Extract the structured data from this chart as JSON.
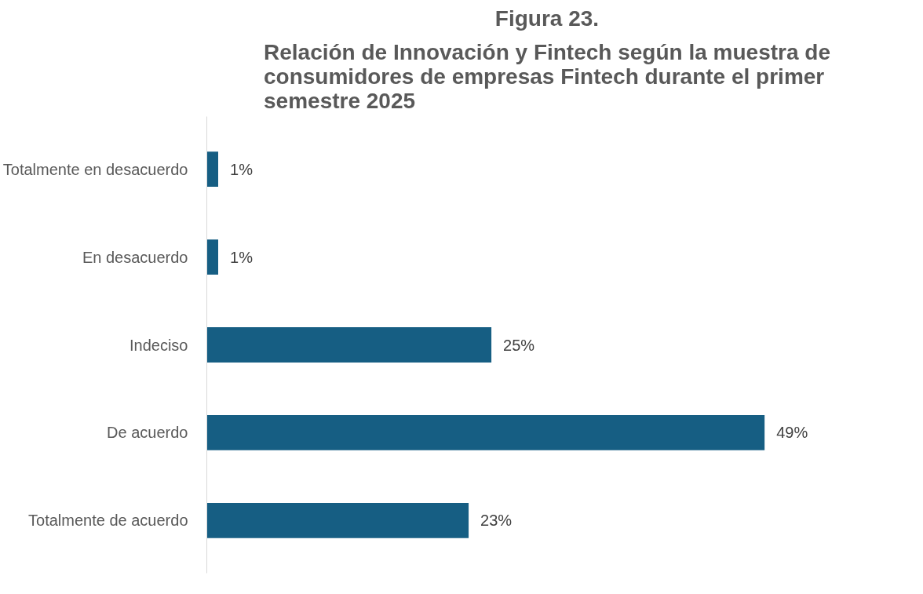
{
  "chart_data": {
    "type": "bar",
    "orientation": "horizontal",
    "title": "Figura 23.",
    "subtitle": "Relación de Innovación y Fintech según la muestra de consumidores de empresas Fintech durante el primer semestre 2025",
    "categories": [
      "Totalmente en desacuerdo",
      "En desacuerdo",
      "Indeciso",
      "De acuerdo",
      "Totalmente de acuerdo"
    ],
    "values": [
      1,
      1,
      25,
      49,
      23
    ],
    "value_labels": [
      "1%",
      "1%",
      "25%",
      "49%",
      "23%"
    ],
    "color": "#165e83"
  }
}
